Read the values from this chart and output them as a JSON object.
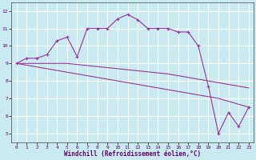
{
  "background_color": "#c8eaf0",
  "grid_color": "#ffffff",
  "line_color": "#993399",
  "xlim": [
    -0.5,
    23.5
  ],
  "ylim": [
    4.5,
    12.5
  ],
  "yticks": [
    5,
    6,
    7,
    8,
    9,
    10,
    11,
    12
  ],
  "xticks": [
    0,
    1,
    2,
    3,
    4,
    5,
    6,
    7,
    8,
    9,
    10,
    11,
    12,
    13,
    14,
    15,
    16,
    17,
    18,
    19,
    20,
    21,
    22,
    23
  ],
  "xlabel": "Windchill (Refroidissement éolien,°C)",
  "s1_x": [
    0,
    1,
    2,
    3,
    4,
    5,
    6,
    7,
    8,
    9,
    10,
    11,
    12,
    13,
    14,
    15,
    16,
    17,
    18,
    19,
    20,
    21,
    22,
    23
  ],
  "s1_y": [
    9.0,
    9.3,
    9.3,
    9.5,
    10.3,
    10.5,
    9.4,
    11.0,
    11.0,
    11.0,
    11.55,
    11.8,
    11.5,
    11.0,
    11.0,
    11.0,
    10.8,
    10.8,
    10.0,
    7.7,
    5.0,
    6.2,
    5.4,
    6.5
  ],
  "s2_x": [
    0,
    5,
    10,
    15,
    19,
    23
  ],
  "s2_y": [
    9.0,
    9.0,
    8.7,
    8.4,
    8.0,
    7.6
  ],
  "s3_x": [
    0,
    5,
    10,
    15,
    20,
    23
  ],
  "s3_y": [
    9.0,
    8.5,
    8.0,
    7.5,
    7.0,
    6.5
  ]
}
